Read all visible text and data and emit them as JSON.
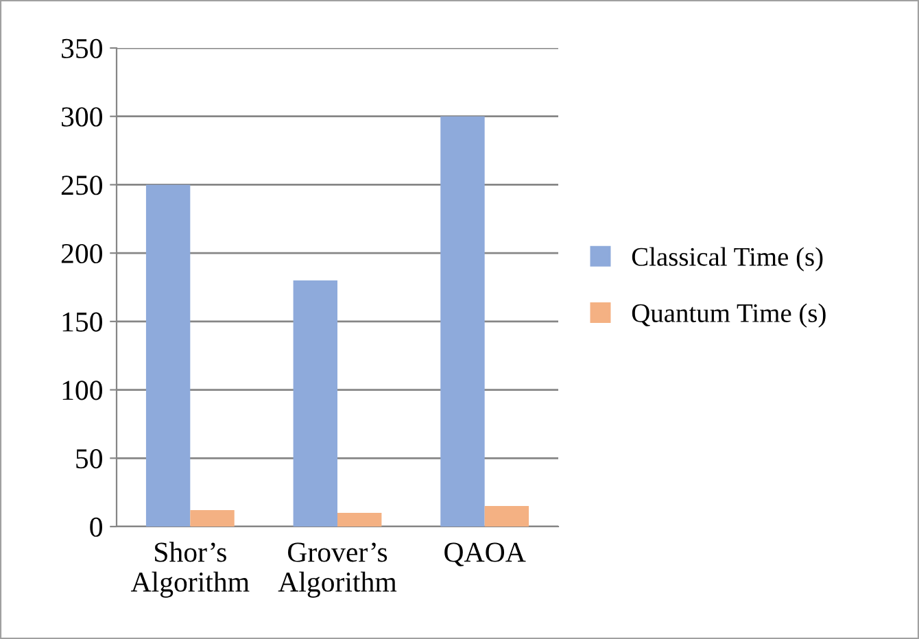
{
  "chart_data": {
    "type": "bar",
    "categories": [
      "Shor’s\nAlgorithm",
      "Grover’s\nAlgorithm",
      "QAOA"
    ],
    "series": [
      {
        "name": "Classical Time (s)",
        "color": "#8eaadb",
        "values": [
          250,
          180,
          300
        ]
      },
      {
        "name": "Quantum Time (s)",
        "color": "#f4b183",
        "values": [
          12,
          10,
          15
        ]
      }
    ],
    "ylim": [
      0,
      350
    ],
    "yticks": [
      0,
      50,
      100,
      150,
      200,
      250,
      300,
      350
    ],
    "grid": "y",
    "legend": "right"
  }
}
